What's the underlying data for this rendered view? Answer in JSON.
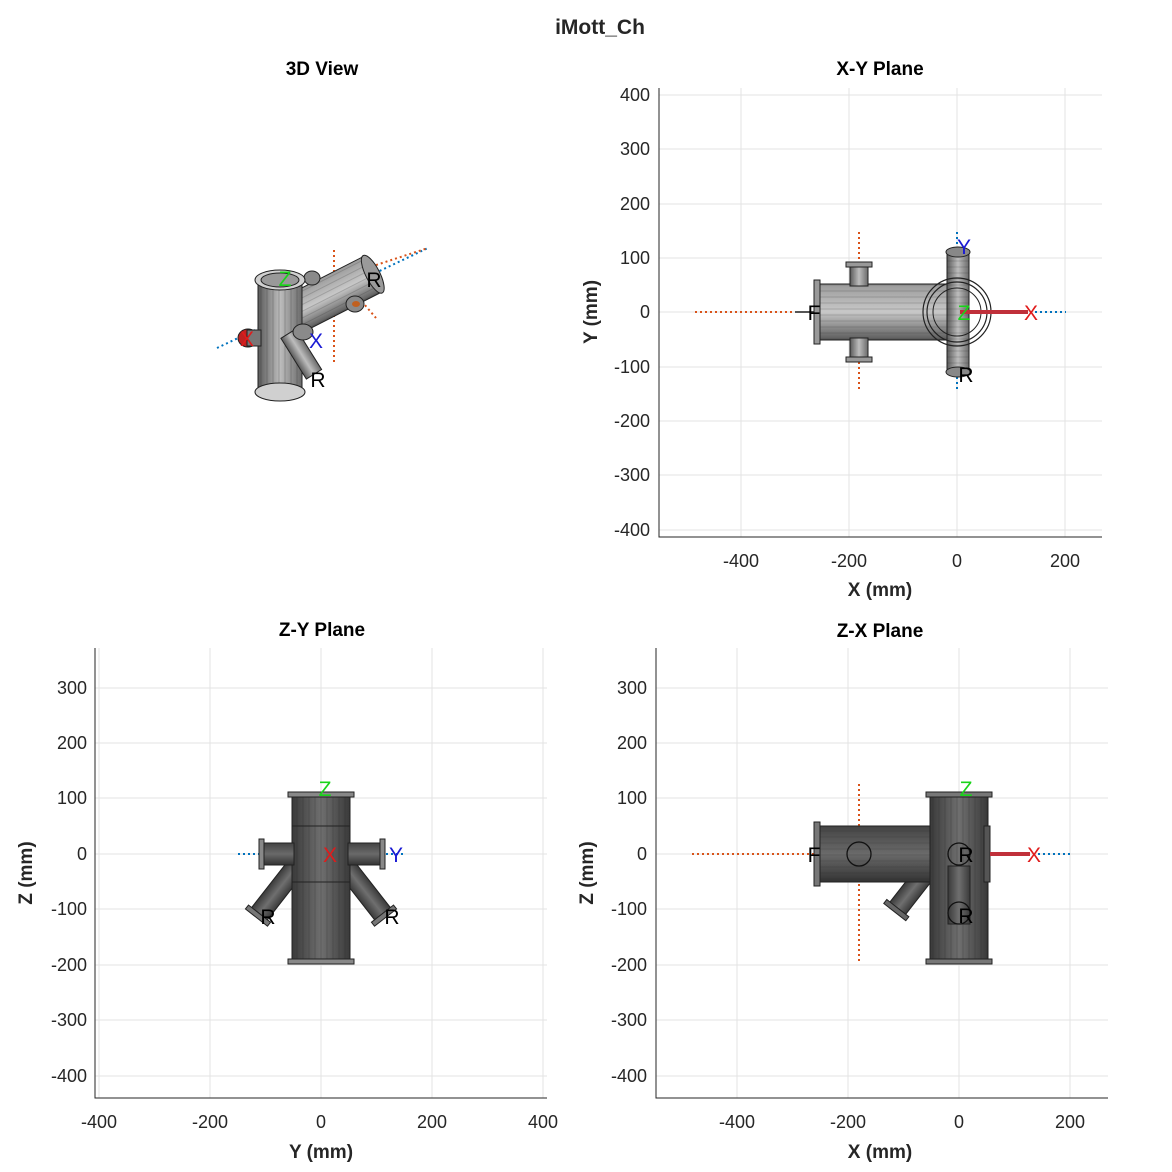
{
  "figure": {
    "title": "iMott_Ch"
  },
  "panels": {
    "view3d": {
      "title": "3D View"
    },
    "xy": {
      "title": "X-Y Plane",
      "xlabel": "X (mm)",
      "ylabel": "Y (mm)",
      "xticks": [
        "-400",
        "-200",
        "0",
        "200"
      ],
      "yticks": [
        "400",
        "300",
        "200",
        "100",
        "0",
        "-100",
        "-200",
        "-300",
        "-400"
      ]
    },
    "zy": {
      "title": "Z-Y Plane",
      "xlabel": "Y (mm)",
      "ylabel": "Z (mm)",
      "xticks": [
        "-400",
        "-200",
        "0",
        "200",
        "400"
      ],
      "yticks": [
        "300",
        "200",
        "100",
        "0",
        "-100",
        "-200",
        "-300",
        "-400"
      ]
    },
    "zx": {
      "title": "Z-X Plane",
      "xlabel": "X (mm)",
      "ylabel": "Z (mm)",
      "xticks": [
        "-400",
        "-200",
        "0",
        "200"
      ],
      "yticks": [
        "300",
        "200",
        "100",
        "0",
        "-100",
        "-200",
        "-300",
        "-400"
      ]
    }
  },
  "markers": {
    "x": "X",
    "y": "Y",
    "z": "Z",
    "r": "R",
    "f": "F"
  },
  "colors": {
    "x_axis": "#e01b1b",
    "y_axis": "#1a1ad4",
    "z_axis": "#19d419",
    "dotted_orange": "#d95319",
    "dotted_blue": "#0072bd",
    "metal": "#6e6e6e"
  }
}
